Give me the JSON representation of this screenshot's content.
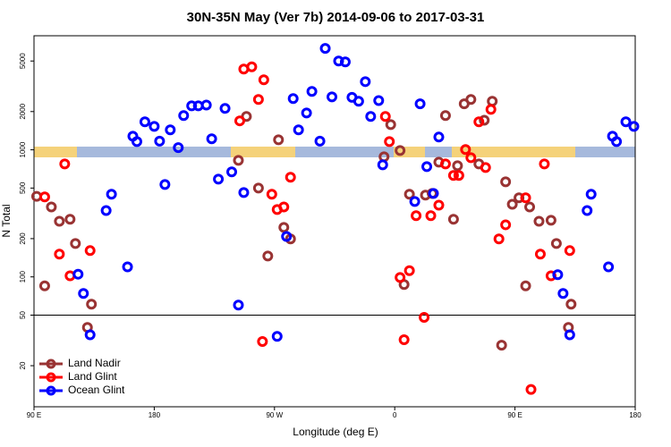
{
  "chart_data": {
    "type": "scatter",
    "title": "30N-35N May (Ver 7b)   2014-09-06 to 2017-03-31",
    "x_label": "Longitude (deg E)",
    "y_label": "N Total",
    "y_scale": "log",
    "legend": "lower left",
    "hline": 50,
    "xlim": [
      90,
      540
    ],
    "xticks": [
      {
        "value": 90,
        "label": "90 E"
      },
      180,
      {
        "value": 270,
        "label": "90 W"
      },
      {
        "value": 360,
        "label": "0"
      },
      {
        "value": 450,
        "label": "90 E"
      },
      180
    ],
    "ylim": [
      9.5,
      7900
    ],
    "yticks": [
      20,
      50,
      100,
      200,
      500,
      1000,
      2000,
      5000
    ],
    "series": [
      {
        "name": "Land Nadir",
        "color": "#993333",
        "x": [
          92,
          98,
          103,
          109,
          117,
          121,
          130,
          133,
          243,
          249,
          258,
          265,
          273,
          277,
          282,
          352,
          357,
          364,
          367,
          371,
          383,
          388,
          393,
          398,
          404,
          407,
          412,
          417,
          423,
          427,
          433,
          443,
          448,
          453,
          458,
          461,
          468,
          477,
          481,
          440,
          490,
          492
        ],
        "values": [
          430,
          85,
          355,
          274,
          284,
          183,
          40,
          61,
          826,
          1830,
          500,
          146,
          1200,
          245,
          199,
          881,
          1580,
          988,
          87,
          447,
          440,
          454,
          800,
          1860,
          284,
          750,
          2300,
          2490,
          774,
          1710,
          2410,
          560,
          373,
          419,
          85,
          355,
          274,
          279,
          183,
          29,
          40,
          61
        ]
      },
      {
        "name": "Land Glint",
        "color": "#ff0000",
        "x": [
          98,
          113,
          109,
          117,
          132,
          247,
          253,
          258,
          262,
          244,
          268,
          272,
          277,
          282,
          261,
          353,
          356,
          364,
          367,
          371,
          376,
          382,
          387,
          393,
          398,
          404,
          408,
          413,
          417,
          423,
          428,
          432,
          438,
          443,
          458,
          462,
          469,
          472,
          477,
          491
        ],
        "values": [
          426,
          774,
          151,
          102,
          161,
          4320,
          4500,
          2490,
          3560,
          1690,
          447,
          339,
          355,
          608,
          31,
          1830,
          1160,
          99,
          32,
          112,
          303,
          48,
          303,
          367,
          774,
          628,
          628,
          1005,
          867,
          1660,
          726,
          2080,
          199,
          257,
          419,
          13,
          151,
          774,
          102,
          161
        ]
      },
      {
        "name": "Ocean Glint",
        "color": "#0000ff",
        "x": [
          123,
          127,
          132,
          144,
          148,
          160,
          164,
          167,
          173,
          180,
          184,
          188,
          192,
          198,
          202,
          208,
          213,
          219,
          223,
          228,
          233,
          238,
          243,
          247,
          272,
          279,
          284,
          288,
          294,
          298,
          304,
          308,
          313,
          318,
          323,
          328,
          333,
          338,
          342,
          348,
          351,
          375,
          379,
          384,
          389,
          393,
          482,
          486,
          491,
          504,
          507,
          520,
          523,
          526,
          533,
          539
        ],
        "values": [
          105,
          74,
          35,
          333,
          447,
          120,
          1280,
          1160,
          1660,
          1530,
          1170,
          533,
          1436,
          1040,
          1860,
          2220,
          2220,
          2250,
          1220,
          588,
          2120,
          670,
          60,
          461,
          34,
          208,
          2530,
          1436,
          1950,
          2880,
          1170,
          6280,
          2610,
          5000,
          4920,
          2590,
          2410,
          3440,
          1830,
          2440,
          762,
          392,
          2300,
          738,
          454,
          1260,
          104,
          74,
          35,
          333,
          447,
          120,
          1280,
          1160,
          1660,
          1530
        ]
      }
    ]
  }
}
